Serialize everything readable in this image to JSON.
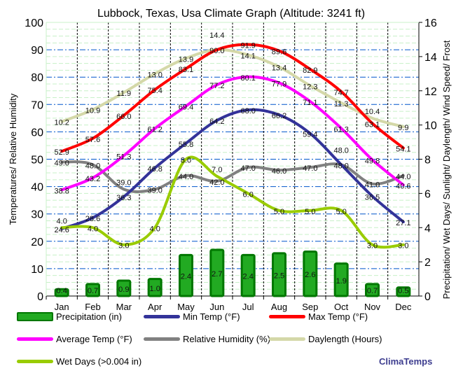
{
  "chart_data": {
    "type": "line",
    "title": "Lubbock, Texas, Usa Climate Graph (Altitude: 3241 ft)",
    "ylabel_left": "Temperatures/ Relative Humidity",
    "ylabel_right": "Precipitation/ Wet Days/ Sunlight/ Daylength/ Wind Speed/ Frost",
    "ylim_left": [
      0,
      100
    ],
    "ylim_right": [
      0,
      16
    ],
    "yticks_left": [
      "0",
      "10",
      "20",
      "30",
      "40",
      "50",
      "60",
      "70",
      "80",
      "90",
      "100"
    ],
    "yticks_right": [
      "0",
      "2",
      "4",
      "6",
      "8",
      "10",
      "12",
      "14",
      "16"
    ],
    "categories": [
      "Jan",
      "Feb",
      "Mar",
      "Apr",
      "May",
      "Jun",
      "Jul",
      "Aug",
      "Sep",
      "Oct",
      "Nov",
      "Dec"
    ],
    "grid": true,
    "legend_placement": "bottom",
    "series": [
      {
        "name": "Precipitation (in)",
        "type": "bar",
        "axis": "right",
        "color": "#22aa22",
        "values": [
          0.4,
          0.7,
          0.9,
          1.0,
          2.4,
          2.7,
          2.4,
          2.5,
          2.6,
          1.9,
          0.7,
          0.5
        ]
      },
      {
        "name": "Min Temp (°F)",
        "type": "line",
        "axis": "left",
        "color": "#333399",
        "values": [
          24.6,
          28.6,
          36.3,
          46.8,
          55.8,
          64.2,
          68.0,
          66.2,
          59.4,
          48.0,
          36.5,
          27.1
        ]
      },
      {
        "name": "Max Temp (°F)",
        "type": "line",
        "axis": "left",
        "color": "#ff0000",
        "values": [
          52.9,
          57.6,
          66.0,
          75.4,
          83.1,
          90.0,
          91.9,
          89.6,
          82.9,
          74.7,
          63.1,
          54.1
        ]
      },
      {
        "name": "Average Temp (°F)",
        "type": "line",
        "axis": "left",
        "color": "#ff00ff",
        "values": [
          38.8,
          43.2,
          51.3,
          61.2,
          69.4,
          77.2,
          80.1,
          77.9,
          71.1,
          61.3,
          49.8,
          40.6
        ]
      },
      {
        "name": "Relative Humidity (%)",
        "type": "line",
        "axis": "left",
        "color": "#808080",
        "values": [
          49.0,
          48.0,
          39.0,
          39.0,
          44.0,
          42.0,
          47.0,
          46.0,
          47.0,
          48.0,
          41.0,
          44.0
        ]
      },
      {
        "name": "Daylength (Hours)",
        "type": "line",
        "axis": "right",
        "color": "#d4d8a8",
        "values": [
          10.2,
          10.9,
          11.9,
          13.0,
          13.9,
          14.4,
          14.1,
          13.4,
          12.3,
          11.3,
          10.4,
          9.9
        ]
      },
      {
        "name": "Wet Days (>0.004 in)",
        "type": "line",
        "axis": "right",
        "color": "#99cc00",
        "values": [
          4.0,
          4.0,
          3.0,
          4.0,
          8.0,
          7.0,
          6.0,
          5.0,
          5.0,
          5.0,
          3.0,
          3.0
        ]
      }
    ]
  },
  "brand": "ClimaTemps"
}
